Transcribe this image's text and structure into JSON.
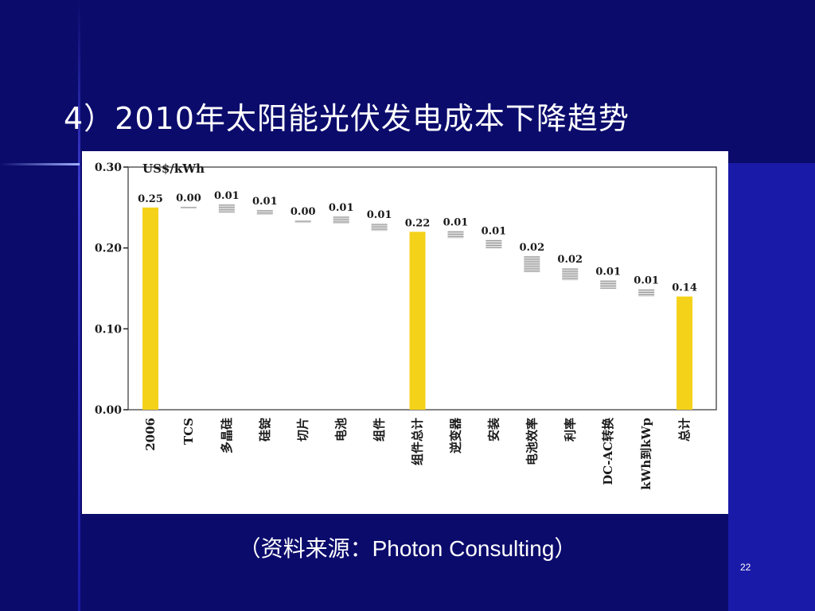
{
  "slide": {
    "title": "4）2010年太阳能光伏发电成本下降趋势",
    "source": "（资料来源：Photon Consulting）",
    "page_number": "22"
  },
  "colors": {
    "background": "#0b0b6c",
    "background_right": "#1a1aa8",
    "total_bar": "#f5d21a",
    "step_bar": "#9a9a9a"
  },
  "chart_data": {
    "type": "bar",
    "subtype": "waterfall",
    "unit_label": "US$/kWh",
    "ylim": [
      0,
      0.3
    ],
    "yticks": [
      "0.00",
      "0.10",
      "0.20",
      "0.30"
    ],
    "categories": [
      "2006",
      "TCS",
      "多晶硅",
      "硅锭",
      "切片",
      "电池",
      "组件",
      "组件总计",
      "逆变器",
      "安装",
      "电池效率",
      "利率",
      "DC-AC转换",
      "kWh到kWp",
      "总计"
    ],
    "labels": [
      "0.25",
      "0.00",
      "0.01",
      "0.01",
      "0.00",
      "0.01",
      "0.01",
      "0.22",
      "0.01",
      "0.01",
      "0.02",
      "0.02",
      "0.01",
      "0.01",
      "0.14"
    ],
    "bars": [
      {
        "kind": "total",
        "low": 0,
        "high": 0.25
      },
      {
        "kind": "step",
        "low": 0.249,
        "high": 0.251
      },
      {
        "kind": "step",
        "low": 0.244,
        "high": 0.254
      },
      {
        "kind": "step",
        "low": 0.241,
        "high": 0.247
      },
      {
        "kind": "step",
        "low": 0.231,
        "high": 0.234
      },
      {
        "kind": "step",
        "low": 0.23,
        "high": 0.239
      },
      {
        "kind": "step",
        "low": 0.221,
        "high": 0.23
      },
      {
        "kind": "total",
        "low": 0,
        "high": 0.22
      },
      {
        "kind": "step",
        "low": 0.212,
        "high": 0.221
      },
      {
        "kind": "step",
        "low": 0.2,
        "high": 0.21
      },
      {
        "kind": "step",
        "low": 0.17,
        "high": 0.19
      },
      {
        "kind": "step",
        "low": 0.16,
        "high": 0.175
      },
      {
        "kind": "step",
        "low": 0.15,
        "high": 0.16
      },
      {
        "kind": "step",
        "low": 0.14,
        "high": 0.149
      },
      {
        "kind": "total",
        "low": 0,
        "high": 0.14
      }
    ]
  }
}
